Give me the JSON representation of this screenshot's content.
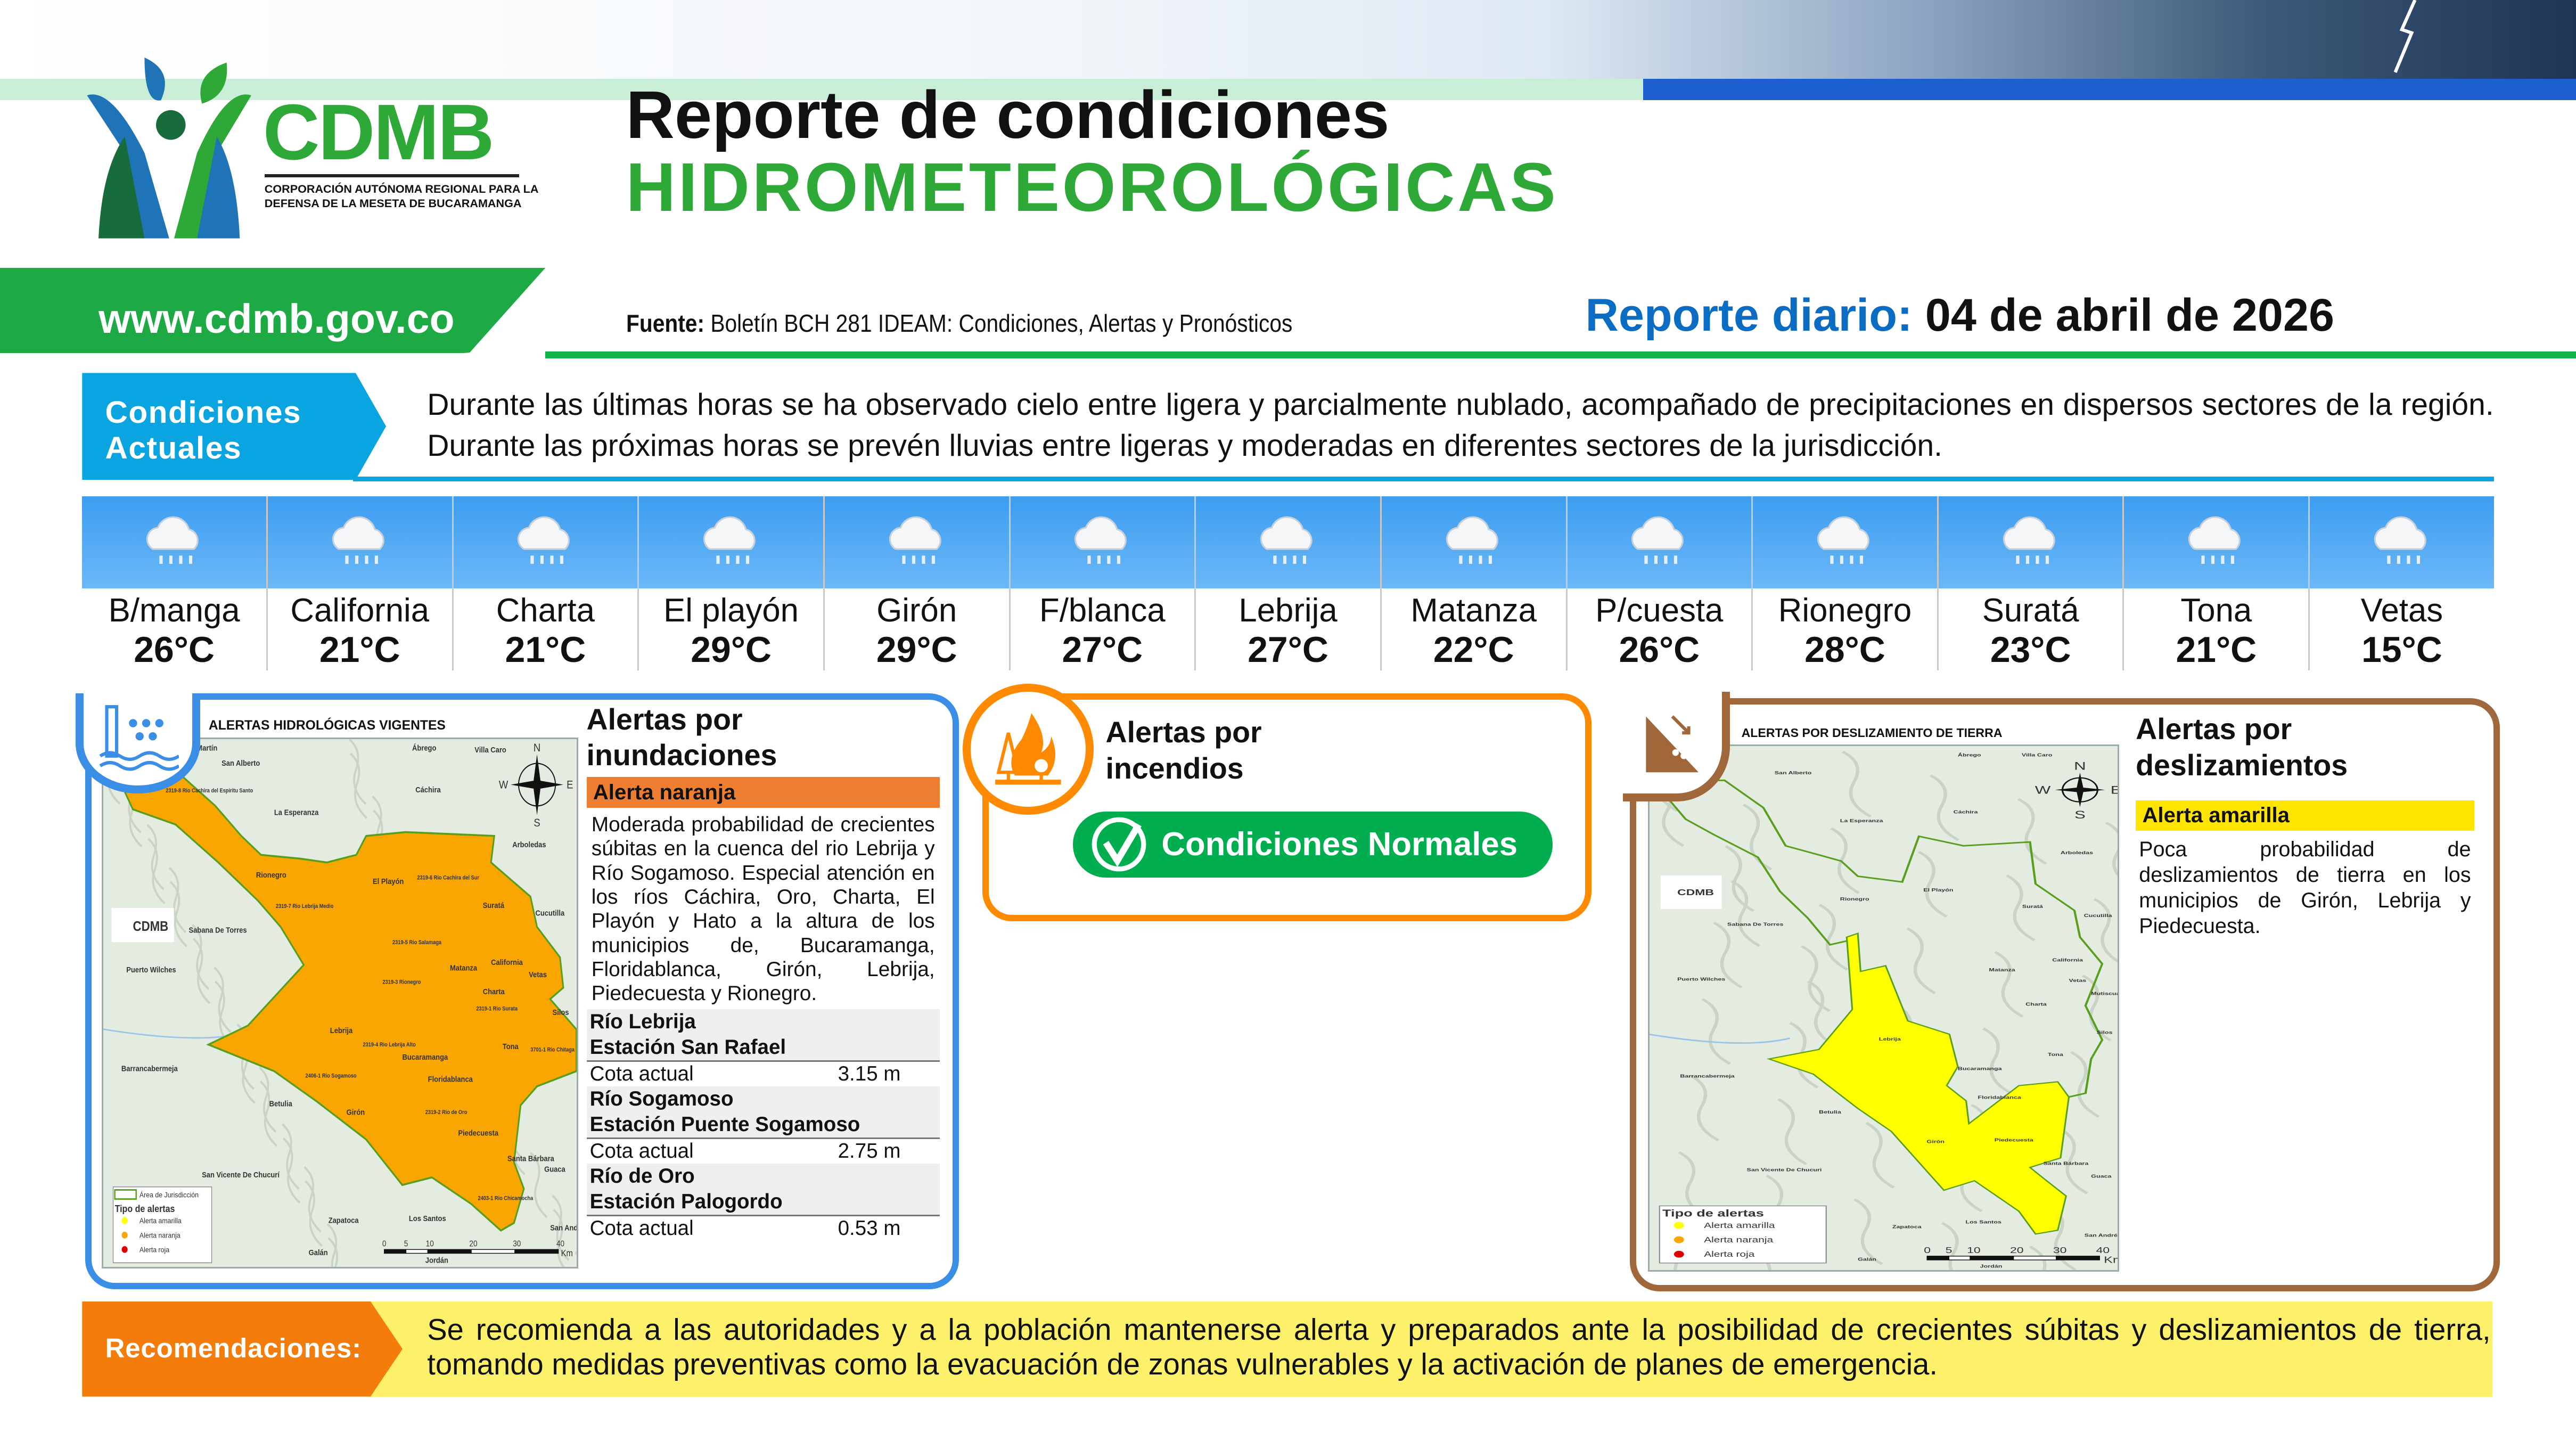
{
  "header": {
    "org_short": "CDMB",
    "org_full_line1": "CORPORACIÓN AUTÓNOMA REGIONAL PARA LA",
    "org_full_line2": "DEFENSA DE LA MESETA DE BUCARAMANGA",
    "title_line1": "Reporte de condiciones",
    "title_line2": "HIDROMETEOROLÓGICAS",
    "website": "www.cdmb.gov.co",
    "source_label": "Fuente:",
    "source_text": "Boletín BCH 281 IDEAM: Condiciones, Alertas y Pronósticos",
    "report_label": "Reporte diario:",
    "report_date": "04 de abril de 2026"
  },
  "conditions": {
    "label_line1": "Condiciones",
    "label_line2": "Actuales",
    "text": "Durante las últimas horas se ha observado cielo entre ligera y parcialmente nublado, acompañado de precipitaciones en dispersos sectores de la región. Durante las próximas horas se prevén lluvias entre ligeras y moderadas en diferentes sectores de la jurisdicción."
  },
  "weather": [
    {
      "name": "B/manga",
      "temp": "26°C",
      "icon": "rain-cloud-icon"
    },
    {
      "name": "California",
      "temp": "21°C",
      "icon": "rain-cloud-icon"
    },
    {
      "name": "Charta",
      "temp": "21°C",
      "icon": "rain-cloud-icon"
    },
    {
      "name": "El playón",
      "temp": "29°C",
      "icon": "rain-cloud-icon"
    },
    {
      "name": "Girón",
      "temp": "29°C",
      "icon": "rain-cloud-icon"
    },
    {
      "name": "F/blanca",
      "temp": "27°C",
      "icon": "rain-cloud-icon"
    },
    {
      "name": "Lebrija",
      "temp": "27°C",
      "icon": "rain-cloud-icon"
    },
    {
      "name": "Matanza",
      "temp": "22°C",
      "icon": "rain-cloud-icon"
    },
    {
      "name": "P/cuesta",
      "temp": "26°C",
      "icon": "rain-cloud-icon"
    },
    {
      "name": "Rionegro",
      "temp": "28°C",
      "icon": "rain-cloud-icon"
    },
    {
      "name": "Suratá",
      "temp": "23°C",
      "icon": "rain-cloud-icon"
    },
    {
      "name": "Tona",
      "temp": "21°C",
      "icon": "rain-cloud-icon"
    },
    {
      "name": "Vetas",
      "temp": "15°C",
      "icon": "rain-cloud-icon"
    }
  ],
  "flood": {
    "title_line1": "Alertas por",
    "title_line2": "inundaciones",
    "alert_level": "Alerta naranja",
    "alert_color": "#ed7d31",
    "description": "Moderada probabilidad de crecientes súbitas en la cuenca del rio Lebrija y Río Sogamoso. Especial atención en los ríos Cáchira, Oro, Charta, El Playón y Hato a la altura de los municipios de, Bucaramanga, Floridablanca, Girón, Lebrija, Piedecuesta y Rionegro.",
    "stations": [
      {
        "river": "Río Lebrija",
        "station": "Estación San Rafael",
        "cota_label": "Cota actual",
        "cota": "3.15 m"
      },
      {
        "river": "Río Sogamoso",
        "station": "Estación Puente Sogamoso",
        "cota_label": "Cota actual",
        "cota": "2.75 m"
      },
      {
        "river": "Río de Oro",
        "station": "Estación Palogordo",
        "cota_label": "Cota actual",
        "cota": "0.53 m"
      }
    ],
    "map": {
      "title": "ALERTAS HIDROLÓGICAS VIGENTES",
      "fill_color": "#f9a602",
      "towns": [
        "San Martín",
        "San Alberto",
        "Ábrego",
        "Villa Caro",
        "Cáchira",
        "La Esperanza",
        "Arboledas",
        "Rionegro",
        "El Playón",
        "Suratá",
        "Cucutilla",
        "Sabana De Torres",
        "Puerto Wilches",
        "Matanza",
        "California",
        "Vetas",
        "Charta",
        "Silos",
        "Lebrija",
        "Tona",
        "Bucaramanga",
        "Barrancabermeja",
        "Floridablanca",
        "Betulia",
        "Girón",
        "Piedecuesta",
        "Santa Bárbara",
        "Guaca",
        "San Vicente De Chucurí",
        "Zapatoca",
        "Los Santos",
        "Galán",
        "Jordán",
        "San Andrés"
      ],
      "basins": [
        "2319-8 Rio Cachira del Espiritu Santo",
        "2319-7 Rio Lebrija Medio",
        "2319-6 Rio Cachira del Sur",
        "2319-5 Rio Salamaga",
        "2319-3 Rionegro",
        "2319-1 Rio Surata",
        "2319-4 Rio Lebrija Alto",
        "3701-1 Rio Chitaga",
        "2406-1 Rio Sogamoso",
        "2319-2 Rio de Oro",
        "2403-1 Rio Chicamocha"
      ],
      "legend": {
        "area": "Área de Jurisdicción",
        "title": "Tipo de alertas",
        "items": [
          "Alerta amarilla",
          "Alerta naranja",
          "Alerta roja"
        ]
      },
      "compass": [
        "N",
        "S",
        "E",
        "W"
      ],
      "scale": [
        "0",
        "5",
        "10",
        "20",
        "30",
        "40",
        "Km"
      ]
    }
  },
  "fire": {
    "title_line1": "Alertas por",
    "title_line2": "incendios",
    "status": "Condiciones Normales",
    "status_color": "#00ad4f"
  },
  "landslide": {
    "title_line1": "Alertas por",
    "title_line2": "deslizamientos",
    "alert_level": "Alerta amarilla",
    "alert_color": "#ffe600",
    "description": "Poca probabilidad de deslizamientos de tierra en los municipios de Girón, Lebrija y Piedecuesta.",
    "map": {
      "title": "ALERTAS POR DESLIZAMIENTO DE TIERRA",
      "fill_color": "#ffff00",
      "towns": [
        "Ábrego",
        "Villa Caro",
        "San Alberto",
        "La Esperanza",
        "Cáchira",
        "Arboledas",
        "El Playón",
        "Rionegro",
        "Suratá",
        "Cucutilla",
        "Sabana De Torres",
        "California",
        "Matanza",
        "Puerto Wilches",
        "Vetas",
        "Mutiscua",
        "Charta",
        "Silos",
        "Lebrija",
        "Tona",
        "Bucaramanga",
        "Barrancabermeja",
        "Floridablanca",
        "Betulia",
        "Girón",
        "Piedecuesta",
        "Santa Bárbara",
        "San Vicente De Chucuri",
        "Guaca",
        "Los Santos",
        "Zapatoca",
        "San Andrés",
        "Galán",
        "Jordán"
      ],
      "legend": {
        "title": "Tipo de alertas",
        "items": [
          "Alerta amarilla",
          "Alerta naranja",
          "Alerta roja"
        ]
      },
      "compass": [
        "N",
        "S",
        "E",
        "W"
      ],
      "scale": [
        "0",
        "5",
        "10",
        "20",
        "30",
        "40",
        "Km"
      ]
    }
  },
  "recommendations": {
    "label": "Recomendaciones:",
    "text": "Se recomienda a las autoridades y a la población mantenerse alerta y preparados ante la posibilidad de crecientes súbitas y deslizamientos de tierra, tomando medidas preventivas como la evacuación de zonas vulnerables y la activación de planes de emergencia."
  }
}
